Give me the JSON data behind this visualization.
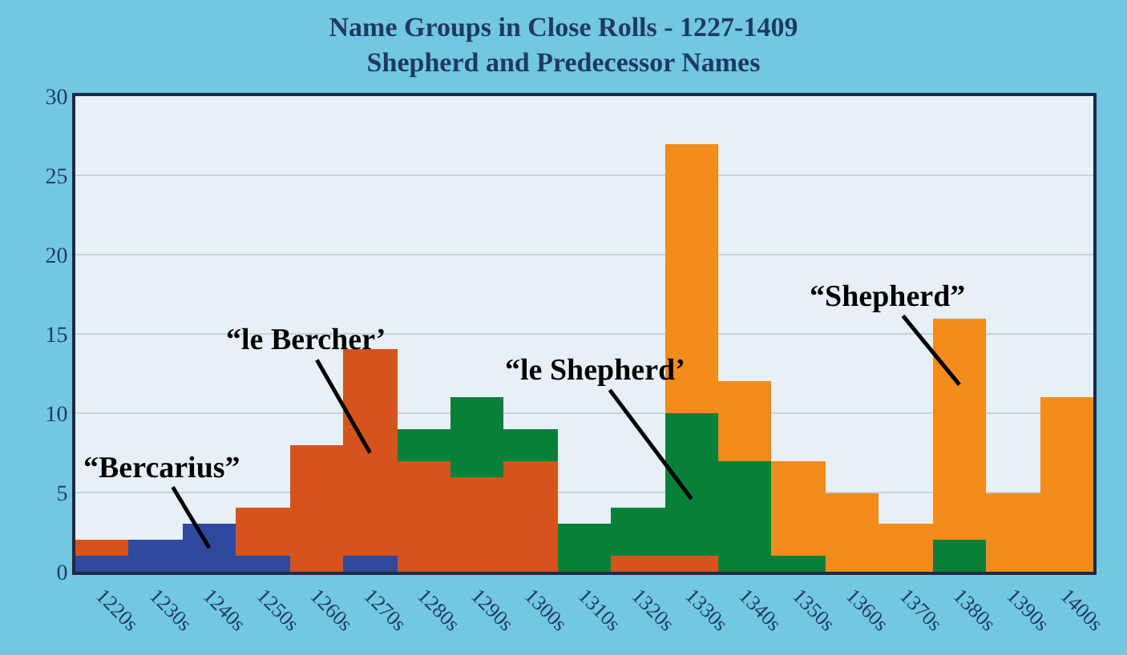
{
  "chart_data": {
    "type": "bar",
    "stacked": true,
    "title": "Name Groups in Close Rolls - 1227-1409\nShepherd and Predecessor Names",
    "categories": [
      "1220s",
      "1230s",
      "1240s",
      "1250s",
      "1260s",
      "1270s",
      "1280s",
      "1290s",
      "1300s",
      "1310s",
      "1320s",
      "1330s",
      "1340s",
      "1350s",
      "1360s",
      "1370s",
      "1380s",
      "1390s",
      "1400s"
    ],
    "series": [
      {
        "name": "“Bercarius”",
        "color": "#2e4a9e",
        "values": [
          1,
          2,
          3,
          1,
          0,
          1,
          0,
          0,
          0,
          0,
          0,
          0,
          0,
          0,
          0,
          0,
          0,
          0,
          0
        ]
      },
      {
        "name": "“le Bercher’",
        "color": "#d4541c",
        "values": [
          1,
          0,
          0,
          3,
          8,
          13,
          7,
          6,
          7,
          0,
          1,
          1,
          0,
          0,
          0,
          0,
          0,
          0,
          0
        ]
      },
      {
        "name": "“le Shepherd’",
        "color": "#0a7f3a",
        "values": [
          0,
          0,
          0,
          0,
          0,
          0,
          2,
          5,
          2,
          3,
          3,
          9,
          7,
          1,
          0,
          0,
          2,
          0,
          0
        ]
      },
      {
        "name": "“Shepherd”",
        "color": "#f28c1c",
        "values": [
          0,
          0,
          0,
          0,
          0,
          0,
          0,
          0,
          0,
          0,
          0,
          17,
          5,
          6,
          5,
          3,
          14,
          5,
          11
        ]
      }
    ],
    "ylim": [
      0,
      30
    ],
    "yticks": [
      0,
      5,
      10,
      15,
      20,
      25,
      30
    ],
    "grid": "y",
    "legend": false
  }
}
